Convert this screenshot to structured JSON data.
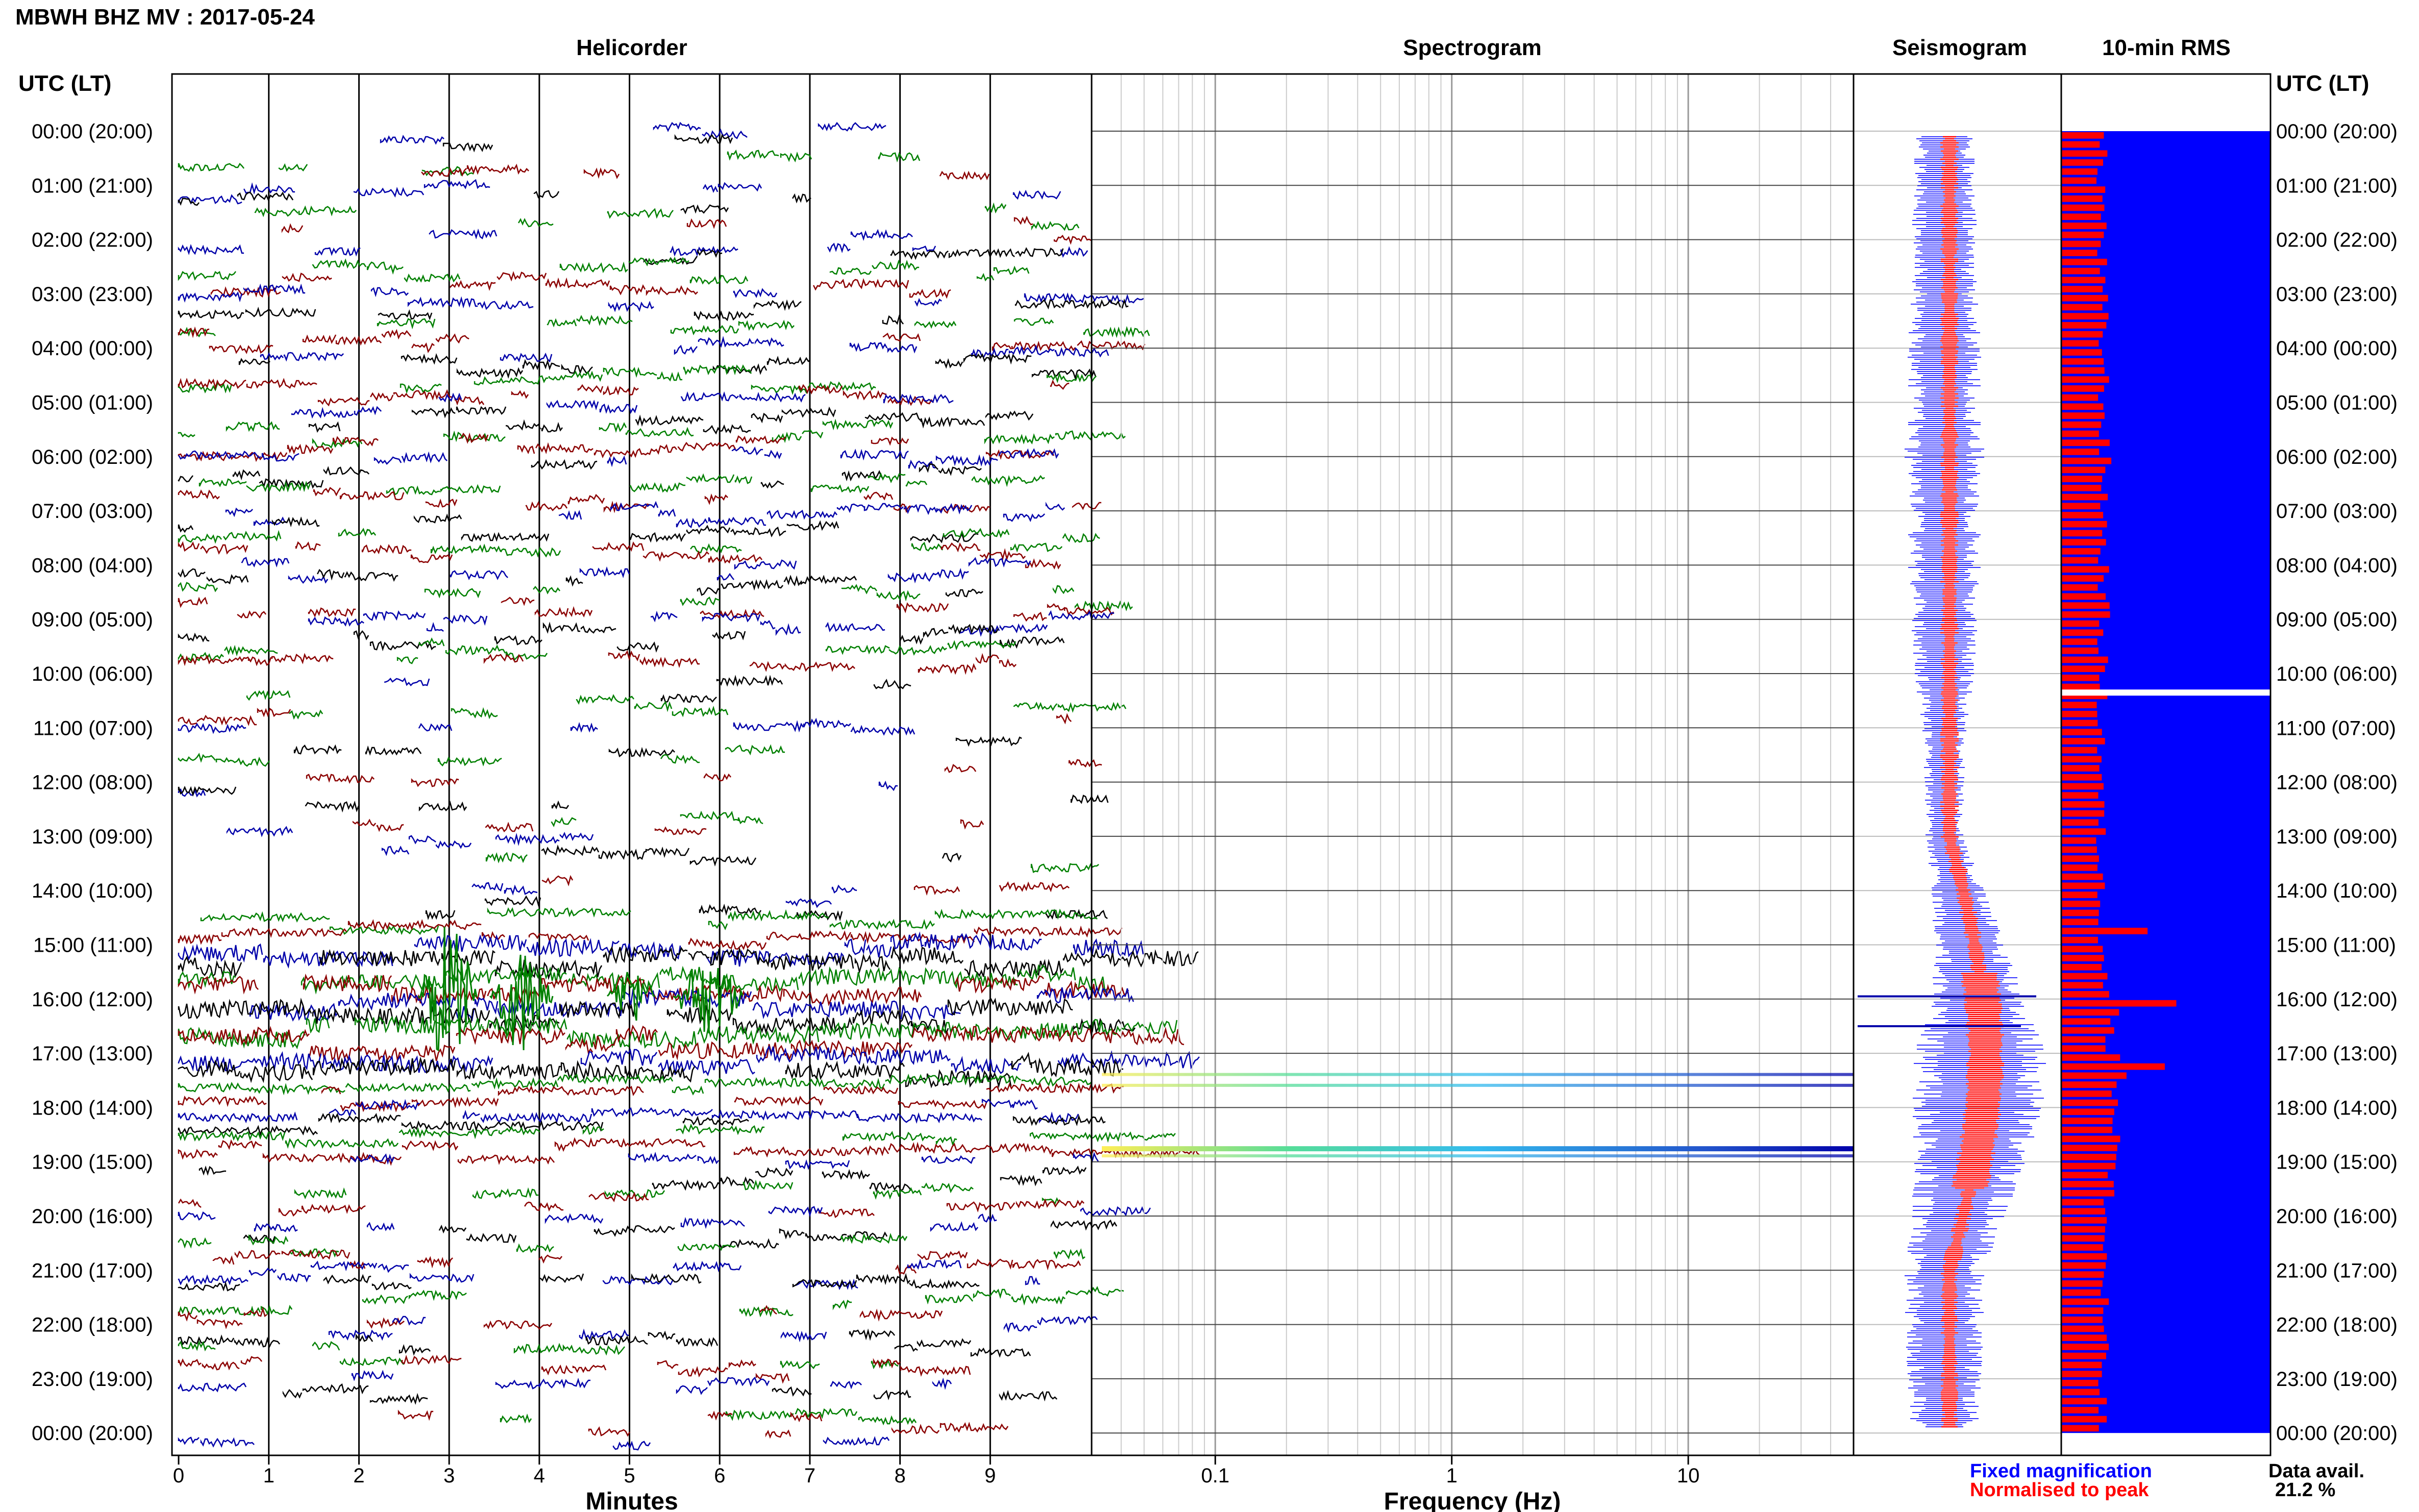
{
  "header": {
    "station_title": "MBWH BHZ MV : 2017-05-24",
    "utc_label_left": "UTC (LT)",
    "utc_label_right": "UTC (LT)"
  },
  "panels": {
    "helicorder_title": "Helicorder",
    "spectrogram_title": "Spectrogram",
    "seismogram_title": "Seismogram",
    "rms_title": "10-min RMS",
    "helicorder_xlabel": "Minutes",
    "spectrogram_xlabel": "Frequency (Hz)"
  },
  "legend": {
    "fixed": "Fixed magnification",
    "normalised": "Normalised to peak",
    "data_avail_label": "Data avail.",
    "data_avail_value": "21.2 %"
  },
  "colors": {
    "trace_cycle": [
      "#0000aa",
      "#000000",
      "#008000",
      "#8b0000"
    ],
    "seismo_fixed": "#0000ff",
    "seismo_norm": "#ff0000",
    "rms_bg": "#0000ff",
    "rms_bar": "#ff0000"
  },
  "chart_data": {
    "type": "helicorder",
    "time_labels": [
      "00:00 (20:00)",
      "01:00 (21:00)",
      "02:00 (22:00)",
      "03:00 (23:00)",
      "04:00 (00:00)",
      "05:00 (01:00)",
      "06:00 (02:00)",
      "07:00 (03:00)",
      "08:00 (04:00)",
      "09:00 (05:00)",
      "10:00 (06:00)",
      "11:00 (07:00)",
      "12:00 (08:00)",
      "13:00 (09:00)",
      "14:00 (10:00)",
      "15:00 (11:00)",
      "16:00 (12:00)",
      "17:00 (13:00)",
      "18:00 (14:00)",
      "19:00 (15:00)",
      "20:00 (16:00)",
      "21:00 (17:00)",
      "22:00 (18:00)",
      "23:00 (19:00)",
      "00:00 (20:00)"
    ],
    "minutes_ticks": [
      "0",
      "1",
      "2",
      "3",
      "4",
      "5",
      "6",
      "7",
      "8",
      "9"
    ],
    "minutes_range": [
      0,
      10
    ],
    "freq_ticks": [
      "0.1",
      "1",
      "10"
    ],
    "freq_range": [
      0.03,
      50
    ],
    "freq_scale": "log",
    "spectrogram_bands_hours": [
      17.4,
      17.6,
      18.75,
      18.9
    ],
    "seismogram_width": [
      0.45,
      0.45,
      0.5,
      0.5,
      0.55,
      0.55,
      0.6,
      0.55,
      0.55,
      0.5,
      0.45,
      0.35,
      0.3,
      0.3,
      0.4,
      0.55,
      0.75,
      1.0,
      1.0,
      0.85,
      0.7,
      0.6,
      0.6,
      0.55,
      0.5
    ],
    "rms_hourly_relative": [
      0.35,
      0.36,
      0.35,
      0.36,
      0.37,
      0.37,
      0.38,
      0.37,
      0.37,
      0.36,
      0.35,
      0.35,
      0.34,
      0.34,
      0.36,
      0.38,
      0.45,
      0.5,
      0.48,
      0.42,
      0.38,
      0.37,
      0.36,
      0.35,
      0.35
    ],
    "rms_gap_hour": 10.35
  }
}
